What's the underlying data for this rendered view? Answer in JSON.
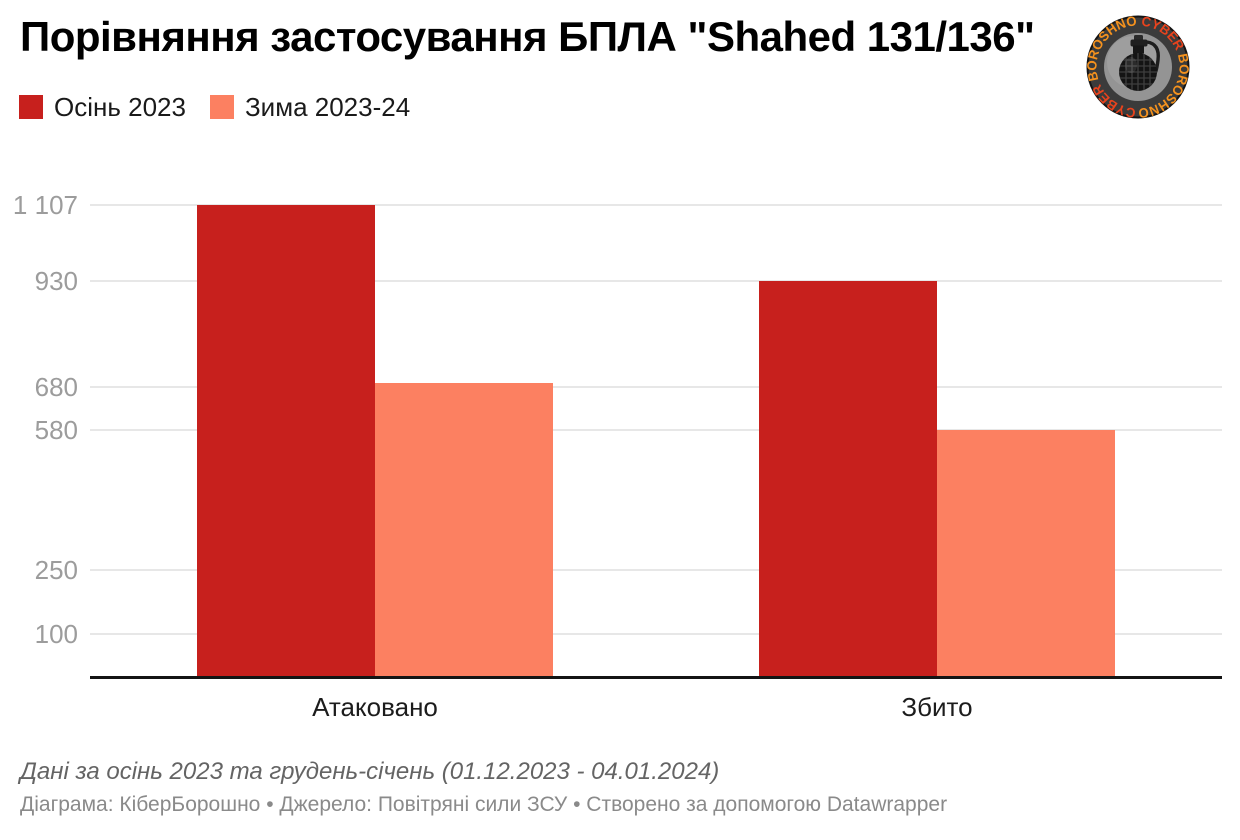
{
  "header": {
    "title": "Порівняння застосування БПЛА \"Shahed 131/136\""
  },
  "logo": {
    "ring_words": [
      "CYBER",
      "BOROSHNO",
      "CYBER",
      "BOROSHNO"
    ],
    "cyber_color": "#e8431d",
    "boroshno_color": "#f5921e",
    "ring_background": "#3b3b3b",
    "inner_disc_color": "#949494",
    "icon": "grenade-icon"
  },
  "legend": {
    "items": [
      {
        "label": "Осінь 2023",
        "color": "#c7201d"
      },
      {
        "label": "Зима 2023-24",
        "color": "#fc8061"
      }
    ]
  },
  "chart_data": {
    "type": "bar",
    "title": "Порівняння застосування БПЛА \"Shahed 131/136\"",
    "categories": [
      "Атаковано",
      "Збито"
    ],
    "series": [
      {
        "name": "Осінь 2023",
        "color": "#c7201d",
        "values": [
          1107,
          930
        ]
      },
      {
        "name": "Зима 2023-24",
        "color": "#fc8061",
        "values": [
          690,
          580
        ]
      }
    ],
    "y_ticks": [
      {
        "label": "1 107",
        "value": 1107
      },
      {
        "label": "930",
        "value": 930
      },
      {
        "label": "680",
        "value": 680
      },
      {
        "label": "580",
        "value": 580
      },
      {
        "label": "250",
        "value": 250
      },
      {
        "label": "100",
        "value": 100
      }
    ],
    "ylim": [
      0,
      1110
    ],
    "grid": true,
    "legend_position": "top-left",
    "grid_color": "#e7e7e7",
    "axis_color": "#141414",
    "tick_label_color": "#9c9c9c"
  },
  "footer": {
    "note": "Дані за осінь 2023 та грудень-січень (01.12.2023 - 04.01.2024)",
    "credits": "Діаграма: КіберБорошно • Джерело: Повітряні сили ЗСУ • Створено за допомогою Datawrapper"
  }
}
